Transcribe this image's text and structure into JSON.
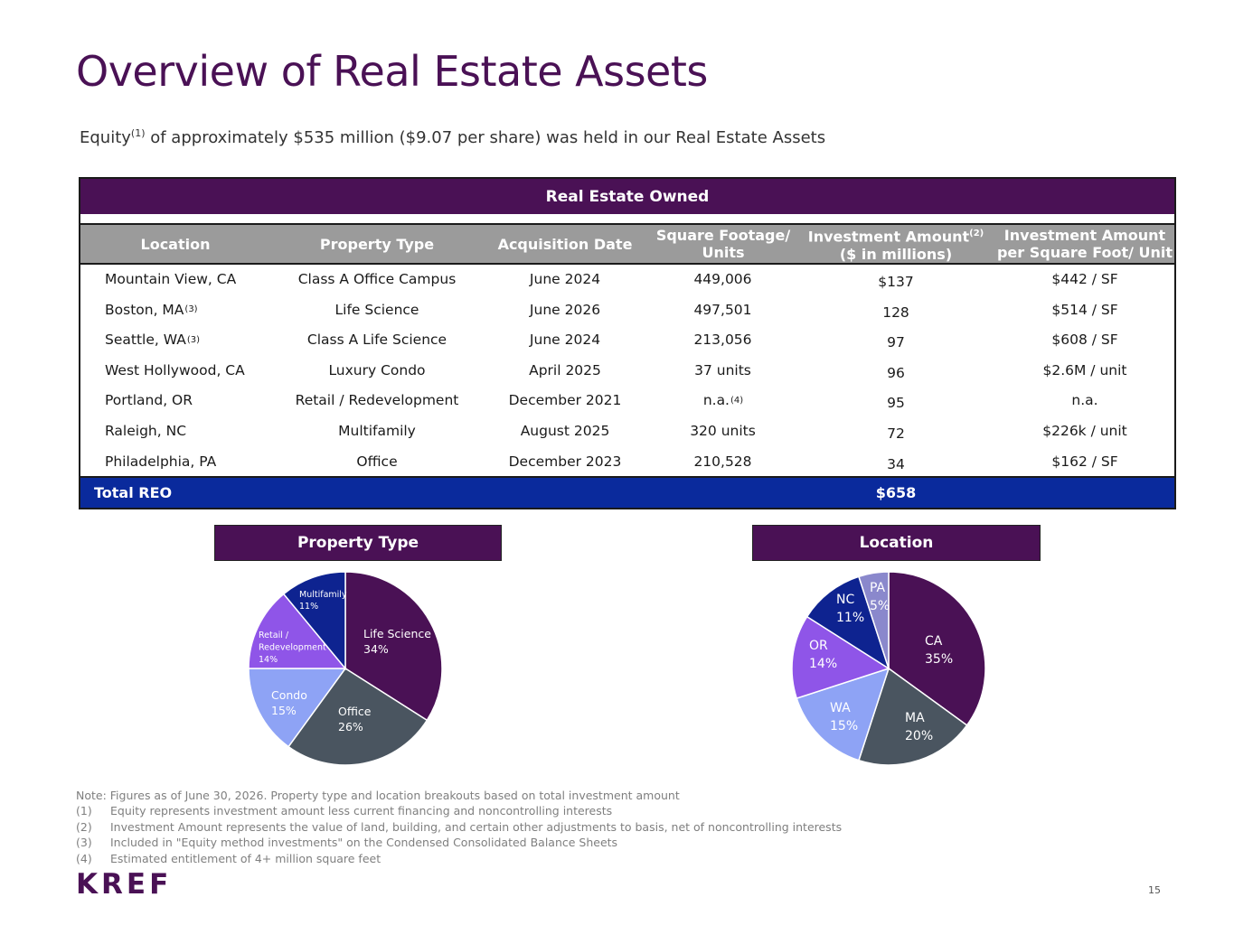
{
  "title": "Overview of Real Estate Assets",
  "subtitle": {
    "before": "Equity",
    "sup": "(1)",
    "after": " of approximately $535 million ($9.07 per share) was held in our Real Estate Assets"
  },
  "table": {
    "title": "Real Estate Owned",
    "headers": {
      "location": "Location",
      "property_type": "Property Type",
      "acquisition_date": "Acquisition Date",
      "square_footage_l1": "Square Footage/",
      "square_footage_l2": "Units",
      "investment_l1": "Investment Amount",
      "investment_sup": "(2)",
      "investment_l2": "($ in millions)",
      "per_unit_l1": "Investment Amount",
      "per_unit_l2": "per Square Foot/ Unit"
    },
    "rows": [
      {
        "location": "Mountain View, CA",
        "location_sup": "",
        "property_type": "Class A Office Campus",
        "acquisition_date": "June 2024",
        "square_footage": "449,006",
        "sqft_sup": "",
        "investment": "$137",
        "per_unit": "$442 / SF"
      },
      {
        "location": "Boston, MA",
        "location_sup": "(3)",
        "property_type": "Life Science",
        "acquisition_date": "June 2026",
        "square_footage": "497,501",
        "sqft_sup": "",
        "investment": "128",
        "per_unit": "$514 / SF"
      },
      {
        "location": "Seattle, WA",
        "location_sup": "(3)",
        "property_type": "Class A Life Science",
        "acquisition_date": "June 2024",
        "square_footage": "213,056",
        "sqft_sup": "",
        "investment": "97",
        "per_unit": "$608 / SF"
      },
      {
        "location": "West Hollywood, CA",
        "location_sup": "",
        "property_type": "Luxury Condo",
        "acquisition_date": "April 2025",
        "square_footage": "37 units",
        "sqft_sup": "",
        "investment": "96",
        "per_unit": "$2.6M / unit"
      },
      {
        "location": "Portland, OR",
        "location_sup": "",
        "property_type": "Retail / Redevelopment",
        "acquisition_date": "December 2021",
        "square_footage": "n.a.",
        "sqft_sup": "(4)",
        "investment": "95",
        "per_unit": "n.a."
      },
      {
        "location": "Raleigh, NC",
        "location_sup": "",
        "property_type": "Multifamily",
        "acquisition_date": "August 2025",
        "square_footage": "320 units",
        "sqft_sup": "",
        "investment": "72",
        "per_unit": "$226k / unit"
      },
      {
        "location": "Philadelphia, PA",
        "location_sup": "",
        "property_type": "Office",
        "acquisition_date": "December 2023",
        "square_footage": "210,528",
        "sqft_sup": "",
        "investment": "34",
        "per_unit": "$162 / SF"
      }
    ],
    "total_label": "Total REO",
    "total_value": "$658"
  },
  "chart_data": [
    {
      "type": "pie",
      "title": "Property Type",
      "slices": [
        {
          "label": "Life Science",
          "value": 34,
          "color": "#4a1155",
          "label_color": "#ffffff"
        },
        {
          "label": "Office",
          "value": 26,
          "color": "#4a5560",
          "label_color": "#ffffff"
        },
        {
          "label": "Condo",
          "value": 15,
          "color": "#8ea3f5",
          "label_color": "#ffffff"
        },
        {
          "label": "Retail / Redevelopment",
          "value": 14,
          "color": "#8f55e8",
          "label_color": "#ffffff"
        },
        {
          "label": "Multifamily",
          "value": 11,
          "color": "#0e2390",
          "label_color": "#ffffff"
        }
      ]
    },
    {
      "type": "pie",
      "title": "Location",
      "slices": [
        {
          "label": "CA",
          "value": 35,
          "color": "#4a1155",
          "label_color": "#ffffff"
        },
        {
          "label": "MA",
          "value": 20,
          "color": "#4a5560",
          "label_color": "#ffffff"
        },
        {
          "label": "WA",
          "value": 15,
          "color": "#8ea3f5",
          "label_color": "#ffffff"
        },
        {
          "label": "OR",
          "value": 14,
          "color": "#8f55e8",
          "label_color": "#ffffff"
        },
        {
          "label": "NC",
          "value": 11,
          "color": "#0e2390",
          "label_color": "#ffffff"
        },
        {
          "label": "PA",
          "value": 5,
          "color": "#8a88cc",
          "label_color": "#ffffff"
        }
      ]
    }
  ],
  "notes": {
    "main": "Note: Figures as of June 30, 2026. Property type and location breakouts based on total investment amount",
    "items": [
      {
        "num": "(1)",
        "text": "Equity represents investment amount less current financing and noncontrolling interests"
      },
      {
        "num": "(2)",
        "text": "Investment Amount represents the value of land, building, and certain other adjustments to basis, net of noncontrolling interests"
      },
      {
        "num": "(3)",
        "text": "Included in \"Equity method investments\" on the Condensed Consolidated Balance Sheets"
      },
      {
        "num": "(4)",
        "text": "Estimated entitlement of 4+ million square feet"
      }
    ]
  },
  "logo": "KREF",
  "page_number": "15",
  "colors": {
    "purple": "#4a1155",
    "navy": "#0a2a9c",
    "header_gray": "#9b9b9b"
  }
}
